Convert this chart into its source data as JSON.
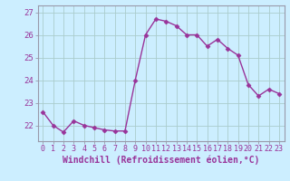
{
  "x": [
    0,
    1,
    2,
    3,
    4,
    5,
    6,
    7,
    8,
    9,
    10,
    11,
    12,
    13,
    14,
    15,
    16,
    17,
    18,
    19,
    20,
    21,
    22,
    23
  ],
  "y": [
    22.6,
    22.0,
    21.7,
    22.2,
    22.0,
    21.9,
    21.8,
    21.75,
    21.75,
    24.0,
    26.0,
    26.7,
    26.6,
    26.4,
    26.0,
    26.0,
    25.5,
    25.8,
    25.4,
    25.1,
    23.8,
    23.3,
    23.6,
    23.4
  ],
  "line_color": "#993399",
  "marker": "D",
  "marker_size": 2.5,
  "line_width": 1.0,
  "bg_color": "#cceeff",
  "grid_color": "#aacccc",
  "xlabel": "Windchill (Refroidissement éolien,°C)",
  "xlabel_fontsize": 7,
  "ylabel_ticks": [
    22,
    23,
    24,
    25,
    26,
    27
  ],
  "ylim": [
    21.3,
    27.3
  ],
  "xlim": [
    -0.5,
    23.5
  ],
  "xtick_fontsize": 6,
  "ytick_fontsize": 6.5
}
